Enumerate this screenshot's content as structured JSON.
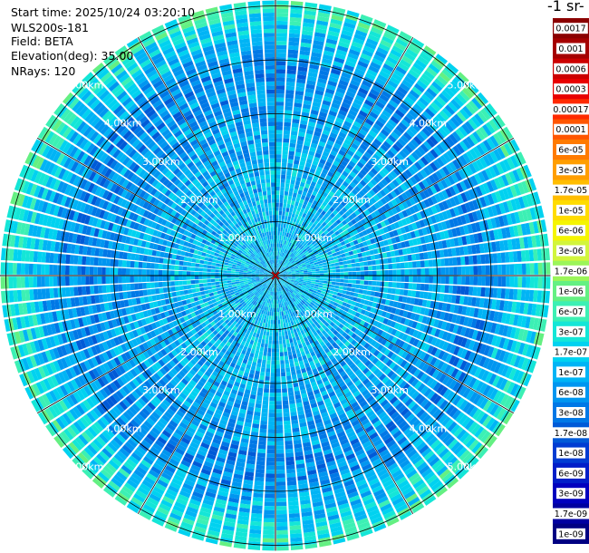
{
  "header": {
    "start_time": "Start time: 2025/10/24 03:20:10",
    "instrument": "WLS200s-181",
    "field": "Field: BETA",
    "elevation": "Elevation(deg): 35.00",
    "nrays": "NRays: 120"
  },
  "colorbar": {
    "title": "-1 sr-",
    "ticks": [
      "0.0017",
      "0.001",
      "0.0006",
      "0.0003",
      "0.00017",
      "0.0001",
      "6e-05",
      "3e-05",
      "1.7e-05",
      "1e-05",
      "6e-06",
      "3e-06",
      "1.7e-06",
      "1e-06",
      "6e-07",
      "3e-07",
      "1.7e-07",
      "1e-07",
      "6e-08",
      "3e-08",
      "1.7e-08",
      "1e-08",
      "6e-09",
      "3e-09",
      "1.7e-09",
      "1e-09"
    ],
    "colors": [
      "#8b0000",
      "#a50000",
      "#cc0000",
      "#e80000",
      "#ff2a00",
      "#ff5500",
      "#ff7b00",
      "#ff9e00",
      "#ffbd00",
      "#ffdc00",
      "#f5f500",
      "#d2f53c",
      "#9bf55a",
      "#64f082",
      "#3cf0b4",
      "#14e6d7",
      "#00d2f0",
      "#00b4f5",
      "#0096f0",
      "#0078e6",
      "#005ad7",
      "#003cd2",
      "#001ec8",
      "#0000be",
      "#0000a0",
      "#000082"
    ]
  },
  "chart_data": {
    "type": "heatmap",
    "projection": "polar-ppi",
    "field": "BETA",
    "elevation_deg": 35.0,
    "nrays": 120,
    "range_rings_km": [
      1,
      2,
      3,
      4,
      5
    ],
    "range_labels": [
      "1.00km",
      "2.00km",
      "3.00km",
      "4.00km",
      "5.00km"
    ],
    "max_range_km": 5.1,
    "value_scale": "log",
    "value_min": 1e-09,
    "value_max": 0.0017,
    "typical_value": 1e-07,
    "radial_profile_km": [
      {
        "range_km": 0.0,
        "value": 1e-07
      },
      {
        "range_km": 1.0,
        "value": 1.2e-07
      },
      {
        "range_km": 2.0,
        "value": 9e-08
      },
      {
        "range_km": 3.0,
        "value": 7e-08
      },
      {
        "range_km": 3.8,
        "value": 4e-08
      },
      {
        "range_km": 4.5,
        "value": 1.5e-07
      },
      {
        "range_km": 5.0,
        "value": 4e-07
      }
    ]
  }
}
